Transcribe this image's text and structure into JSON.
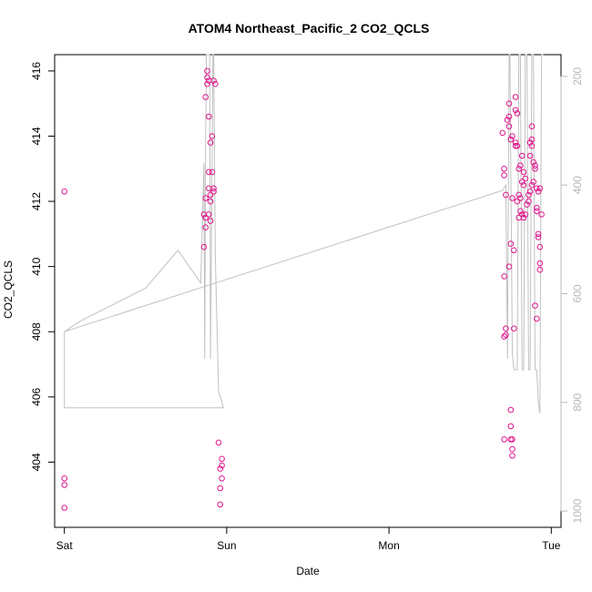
{
  "chart_data": {
    "type": "scatter",
    "title": "ATOM4 Northeast_Pacific_2 CO2_QCLS",
    "xlabel": "Date",
    "ylabel": "CO2_QCLS",
    "x_axis": {
      "type": "date",
      "ticks": [
        {
          "value": "Sat",
          "t": 0
        },
        {
          "value": "Sun",
          "t": 1
        },
        {
          "value": "Mon",
          "t": 2
        },
        {
          "value": "Tue",
          "t": 3
        }
      ],
      "range": [
        -0.06,
        3.06
      ]
    },
    "y_axis": {
      "range": [
        402.0,
        416.5
      ],
      "ticks": [
        404,
        406,
        408,
        410,
        412,
        414,
        416
      ]
    },
    "y2_axis": {
      "range": [
        1030,
        160
      ],
      "ticks": [
        200,
        400,
        600,
        800,
        1000
      ],
      "color": "#b8b8b8"
    },
    "colors": {
      "point": "#e0148c",
      "line": "#c0c0c0",
      "frame": "#000000"
    },
    "series": [
      {
        "kind": "points",
        "points": [
          [
            0.0,
            412.3
          ],
          [
            0.0,
            403.5
          ],
          [
            0.0,
            403.3
          ],
          [
            0.0,
            402.6
          ],
          [
            0.88,
            416.0
          ],
          [
            0.88,
            415.8
          ],
          [
            0.88,
            415.6
          ],
          [
            0.89,
            415.7
          ],
          [
            0.87,
            415.2
          ],
          [
            0.89,
            414.6
          ],
          [
            0.9,
            413.8
          ],
          [
            0.91,
            414.0
          ],
          [
            0.89,
            412.9
          ],
          [
            0.91,
            412.9
          ],
          [
            0.92,
            412.4
          ],
          [
            0.92,
            412.3
          ],
          [
            0.9,
            412.2
          ],
          [
            0.89,
            412.4
          ],
          [
            0.87,
            412.1
          ],
          [
            0.9,
            412.0
          ],
          [
            0.86,
            411.6
          ],
          [
            0.87,
            411.5
          ],
          [
            0.89,
            411.6
          ],
          [
            0.9,
            411.4
          ],
          [
            0.87,
            411.2
          ],
          [
            0.86,
            410.6
          ],
          [
            0.95,
            404.6
          ],
          [
            0.97,
            404.1
          ],
          [
            0.97,
            403.9
          ],
          [
            0.96,
            403.8
          ],
          [
            0.97,
            403.5
          ],
          [
            0.96,
            403.2
          ],
          [
            0.96,
            402.7
          ],
          [
            0.92,
            415.7
          ],
          [
            0.93,
            415.6
          ],
          [
            2.7,
            414.1
          ],
          [
            2.71,
            413.0
          ],
          [
            2.71,
            412.8
          ],
          [
            2.72,
            412.2
          ],
          [
            2.71,
            409.7
          ],
          [
            2.72,
            408.1
          ],
          [
            2.72,
            407.9
          ],
          [
            2.71,
            407.85
          ],
          [
            2.73,
            414.5
          ],
          [
            2.74,
            414.3
          ],
          [
            2.74,
            414.6
          ],
          [
            2.74,
            415.0
          ],
          [
            2.75,
            413.9
          ],
          [
            2.76,
            414.0
          ],
          [
            2.76,
            412.1
          ],
          [
            2.75,
            410.7
          ],
          [
            2.77,
            410.5
          ],
          [
            2.77,
            408.1
          ],
          [
            2.74,
            410.0
          ],
          [
            2.75,
            405.6
          ],
          [
            2.75,
            405.1
          ],
          [
            2.75,
            404.7
          ],
          [
            2.76,
            404.7
          ],
          [
            2.76,
            404.4
          ],
          [
            2.76,
            404.2
          ],
          [
            2.71,
            404.7
          ],
          [
            2.78,
            415.2
          ],
          [
            2.78,
            414.8
          ],
          [
            2.79,
            414.7
          ],
          [
            2.78,
            413.8
          ],
          [
            2.78,
            413.7
          ],
          [
            2.79,
            413.7
          ],
          [
            2.8,
            413.0
          ],
          [
            2.81,
            413.1
          ],
          [
            2.82,
            413.4
          ],
          [
            2.83,
            412.9
          ],
          [
            2.8,
            412.2
          ],
          [
            2.81,
            412.1
          ],
          [
            2.79,
            412.0
          ],
          [
            2.81,
            411.7
          ],
          [
            2.8,
            411.5
          ],
          [
            2.82,
            411.6
          ],
          [
            2.83,
            411.5
          ],
          [
            2.84,
            411.6
          ],
          [
            2.85,
            411.9
          ],
          [
            2.83,
            412.5
          ],
          [
            2.82,
            412.6
          ],
          [
            2.84,
            412.7
          ],
          [
            2.86,
            412.2
          ],
          [
            2.86,
            412.0
          ],
          [
            2.87,
            413.4
          ],
          [
            2.87,
            413.8
          ],
          [
            2.88,
            413.7
          ],
          [
            2.88,
            413.9
          ],
          [
            2.88,
            414.3
          ],
          [
            2.89,
            413.2
          ],
          [
            2.9,
            413.1
          ],
          [
            2.9,
            413.0
          ],
          [
            2.91,
            412.4
          ],
          [
            2.92,
            412.3
          ],
          [
            2.93,
            412.4
          ],
          [
            2.91,
            411.7
          ],
          [
            2.91,
            411.8
          ],
          [
            2.92,
            411.0
          ],
          [
            2.92,
            410.9
          ],
          [
            2.93,
            410.6
          ],
          [
            2.93,
            410.1
          ],
          [
            2.93,
            409.9
          ],
          [
            2.94,
            411.6
          ],
          [
            2.9,
            408.8
          ],
          [
            2.91,
            408.4
          ],
          [
            2.89,
            412.6
          ],
          [
            2.88,
            412.5
          ],
          [
            2.87,
            412.3
          ]
        ]
      },
      {
        "kind": "line",
        "axis": "y2",
        "points": [
          [
            0.0,
            670
          ],
          [
            0.0,
            810
          ],
          [
            0.2,
            810
          ],
          [
            0.4,
            810
          ],
          [
            0.6,
            810
          ],
          [
            0.8,
            810
          ],
          [
            0.98,
            810
          ],
          [
            0.95,
            780
          ],
          [
            0.93,
            530
          ],
          [
            0.92,
            140
          ],
          [
            0.915,
            140
          ],
          [
            0.9,
            720
          ],
          [
            0.895,
            140
          ],
          [
            0.89,
            140
          ],
          [
            0.88,
            140
          ],
          [
            0.875,
            140
          ],
          [
            0.87,
            330
          ],
          [
            0.865,
            720
          ],
          [
            0.86,
            360
          ],
          [
            0.84,
            580
          ],
          [
            0.7,
            520
          ],
          [
            0.5,
            590
          ],
          [
            0.3,
            620
          ],
          [
            0.1,
            650
          ],
          [
            0.0,
            670
          ],
          [
            2.7,
            410
          ],
          [
            2.72,
            400
          ],
          [
            2.73,
            720
          ],
          [
            2.74,
            140
          ],
          [
            2.745,
            140
          ],
          [
            2.76,
            710
          ],
          [
            2.77,
            740
          ],
          [
            2.79,
            740
          ],
          [
            2.8,
            140
          ],
          [
            2.81,
            140
          ],
          [
            2.82,
            740
          ],
          [
            2.83,
            740
          ],
          [
            2.84,
            140
          ],
          [
            2.85,
            140
          ],
          [
            2.86,
            740
          ],
          [
            2.87,
            740
          ],
          [
            2.88,
            140
          ],
          [
            2.89,
            140
          ],
          [
            2.9,
            740
          ],
          [
            2.91,
            740
          ],
          [
            2.92,
            800
          ],
          [
            2.93,
            820
          ],
          [
            2.94,
            140
          ],
          [
            2.95,
            140
          ]
        ]
      }
    ]
  }
}
